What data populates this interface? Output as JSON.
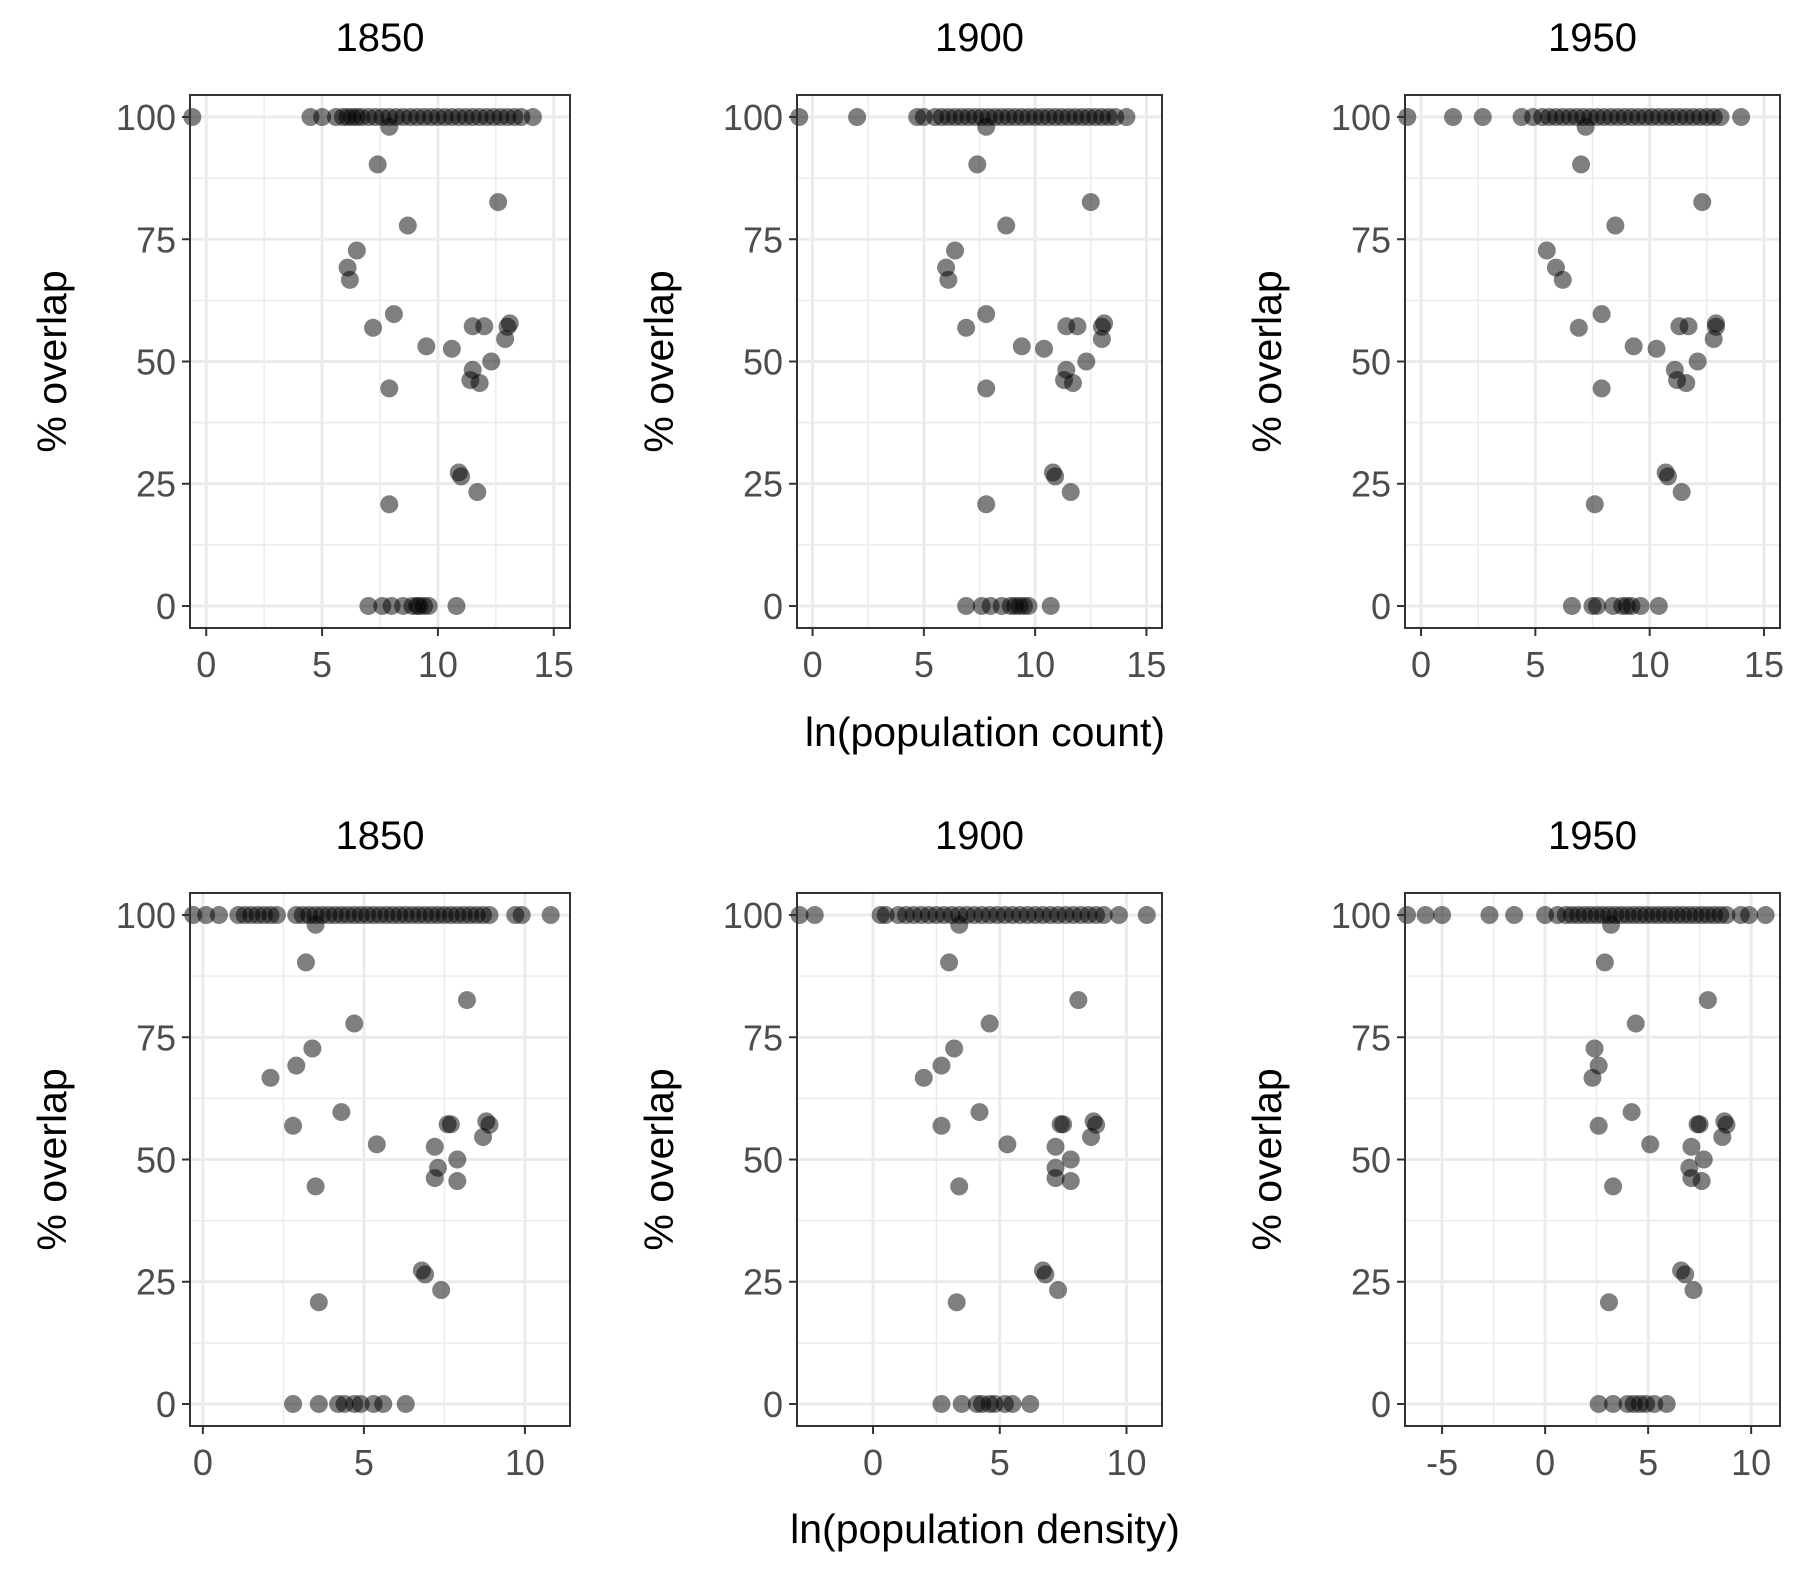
{
  "figure": {
    "xlabel_row1": "ln(population count)",
    "xlabel_row2": "ln(population density)",
    "ylabel": "% overlap"
  },
  "style": {
    "point_color": "#000000",
    "point_opacity": 0.5,
    "grid_color": "#ebebeb",
    "frame_color": "#333333",
    "tick_color": "#4d4d4d"
  },
  "chart_data": [
    {
      "type": "scatter",
      "title": "1850",
      "xlabel": "",
      "ylabel": "% overlap",
      "xlim": [
        -0.7,
        15.7
      ],
      "ylim": [
        -4.5,
        104.5
      ],
      "xticks": [
        0,
        5,
        10,
        15
      ],
      "yticks": [
        0,
        25,
        50,
        75,
        100
      ],
      "grid": true,
      "x": [
        -0.6,
        4.5,
        5.0,
        5.6,
        5.9,
        6.1,
        6.3,
        6.5,
        6.7,
        7.0,
        7.3,
        7.6,
        7.9,
        8.2,
        8.5,
        8.8,
        9.1,
        9.4,
        9.7,
        10.0,
        10.3,
        10.6,
        10.9,
        11.2,
        11.5,
        11.8,
        12.1,
        12.4,
        12.7,
        13.0,
        13.3,
        13.6,
        14.1,
        7.9,
        7.4,
        12.6,
        8.7,
        6.5,
        6.1,
        6.2,
        8.1,
        7.2,
        13.1,
        13.0,
        12.9,
        11.5,
        12.0,
        9.5,
        10.6,
        12.3,
        11.5,
        11.4,
        11.8,
        7.9,
        10.9,
        11.0,
        11.7,
        7.9,
        7.0,
        7.6,
        8.0,
        8.5,
        8.9,
        9.1,
        9.2,
        9.4,
        9.6,
        10.8
      ],
      "y": [
        100,
        100,
        100,
        100,
        100,
        100,
        100,
        100,
        100,
        100,
        100,
        100,
        100,
        100,
        100,
        100,
        100,
        100,
        100,
        100,
        100,
        100,
        100,
        100,
        100,
        100,
        100,
        100,
        100,
        100,
        100,
        100,
        100,
        98,
        90.3,
        82.6,
        77.8,
        72.7,
        69.2,
        66.7,
        59.7,
        56.9,
        57.8,
        57.1,
        54.6,
        57.2,
        57.2,
        53.1,
        52.6,
        50,
        48.3,
        46.2,
        45.6,
        44.5,
        27.3,
        26.5,
        23.3,
        20.8,
        0,
        0,
        0,
        0,
        0,
        0,
        0,
        0,
        0,
        0
      ]
    },
    {
      "type": "scatter",
      "title": "1900",
      "xlabel": "ln(population count)",
      "ylabel": "% overlap",
      "xlim": [
        -0.7,
        15.7
      ],
      "ylim": [
        -4.5,
        104.5
      ],
      "xticks": [
        0,
        5,
        10,
        15
      ],
      "yticks": [
        0,
        25,
        50,
        75,
        100
      ],
      "grid": true,
      "x": [
        -0.6,
        2.0,
        4.7,
        5.0,
        5.5,
        5.8,
        6.1,
        6.4,
        6.7,
        7.0,
        7.3,
        7.6,
        7.9,
        8.2,
        8.5,
        8.8,
        9.1,
        9.4,
        9.7,
        10.0,
        10.3,
        10.6,
        10.9,
        11.2,
        11.5,
        11.8,
        12.1,
        12.4,
        12.7,
        13.0,
        13.3,
        13.6,
        14.1,
        7.8,
        7.4,
        12.5,
        8.7,
        6.4,
        6.0,
        6.1,
        7.8,
        6.9,
        13.1,
        13.0,
        13.0,
        11.4,
        11.9,
        9.4,
        10.4,
        12.3,
        11.4,
        11.3,
        11.7,
        7.8,
        10.8,
        10.9,
        11.6,
        7.8,
        6.9,
        7.6,
        8.0,
        8.5,
        8.9,
        9.1,
        9.3,
        9.5,
        9.7,
        10.7
      ],
      "y": [
        100,
        100,
        100,
        100,
        100,
        100,
        100,
        100,
        100,
        100,
        100,
        100,
        100,
        100,
        100,
        100,
        100,
        100,
        100,
        100,
        100,
        100,
        100,
        100,
        100,
        100,
        100,
        100,
        100,
        100,
        100,
        100,
        100,
        98,
        90.3,
        82.6,
        77.8,
        72.7,
        69.2,
        66.7,
        59.7,
        56.9,
        57.8,
        57.1,
        54.6,
        57.2,
        57.2,
        53.1,
        52.6,
        50,
        48.3,
        46.2,
        45.6,
        44.5,
        27.3,
        26.5,
        23.3,
        20.8,
        0,
        0,
        0,
        0,
        0,
        0,
        0,
        0,
        0,
        0
      ]
    },
    {
      "type": "scatter",
      "title": "1950",
      "xlabel": "",
      "ylabel": "% overlap",
      "xlim": [
        -0.7,
        15.7
      ],
      "ylim": [
        -4.5,
        104.5
      ],
      "xticks": [
        0,
        5,
        10,
        15
      ],
      "yticks": [
        0,
        25,
        50,
        75,
        100
      ],
      "grid": true,
      "x": [
        -0.6,
        1.4,
        2.7,
        4.4,
        4.9,
        5.3,
        5.6,
        5.9,
        6.2,
        6.5,
        6.8,
        7.1,
        7.4,
        7.7,
        8.0,
        8.3,
        8.6,
        8.9,
        9.2,
        9.5,
        9.8,
        10.1,
        10.4,
        10.7,
        11.0,
        11.3,
        11.6,
        11.9,
        12.2,
        12.5,
        12.8,
        13.1,
        14.0,
        7.2,
        7.0,
        12.3,
        8.5,
        5.5,
        5.9,
        6.2,
        7.9,
        6.9,
        12.9,
        12.9,
        12.8,
        11.3,
        11.7,
        9.3,
        10.3,
        12.1,
        11.1,
        11.2,
        11.6,
        7.9,
        10.7,
        10.8,
        11.4,
        7.6,
        6.6,
        7.5,
        7.7,
        8.4,
        8.8,
        9.0,
        9.2,
        9.6,
        10.4
      ],
      "y": [
        100,
        100,
        100,
        100,
        100,
        100,
        100,
        100,
        100,
        100,
        100,
        100,
        100,
        100,
        100,
        100,
        100,
        100,
        100,
        100,
        100,
        100,
        100,
        100,
        100,
        100,
        100,
        100,
        100,
        100,
        100,
        100,
        100,
        98,
        90.3,
        82.6,
        77.8,
        72.7,
        69.2,
        66.7,
        59.7,
        56.9,
        57.8,
        57.1,
        54.6,
        57.2,
        57.2,
        53.1,
        52.6,
        50,
        48.3,
        46.2,
        45.6,
        44.5,
        27.3,
        26.5,
        23.3,
        20.8,
        0,
        0,
        0,
        0,
        0,
        0,
        0,
        0,
        0
      ]
    },
    {
      "type": "scatter",
      "title": "1850",
      "xlabel": "",
      "ylabel": "% overlap",
      "xlim": [
        -0.4,
        11.4
      ],
      "ylim": [
        -4.5,
        104.5
      ],
      "xticks": [
        0,
        5,
        10
      ],
      "yticks": [
        0,
        25,
        50,
        75,
        100
      ],
      "grid": true,
      "x": [
        -0.3,
        0.1,
        0.5,
        1.1,
        1.3,
        1.5,
        1.7,
        1.9,
        2.1,
        2.3,
        2.9,
        3.1,
        3.3,
        3.5,
        3.7,
        3.9,
        4.1,
        4.3,
        4.5,
        4.7,
        4.9,
        5.1,
        5.3,
        5.5,
        5.7,
        5.9,
        6.1,
        6.3,
        6.5,
        6.7,
        6.9,
        7.1,
        7.3,
        7.5,
        7.7,
        7.9,
        8.1,
        8.3,
        8.5,
        8.7,
        8.9,
        9.7,
        9.9,
        10.8,
        3.5,
        3.2,
        8.2,
        4.7,
        3.4,
        2.9,
        2.1,
        4.3,
        2.8,
        7.7,
        7.6,
        8.8,
        8.9,
        8.7,
        5.4,
        7.2,
        7.9,
        7.3,
        7.2,
        7.9,
        3.5,
        6.8,
        6.9,
        7.4,
        3.6,
        2.8,
        3.6,
        4.2,
        4.4,
        4.7,
        4.9,
        5.3,
        5.6,
        6.3
      ],
      "y": [
        100,
        100,
        100,
        100,
        100,
        100,
        100,
        100,
        100,
        100,
        100,
        100,
        100,
        100,
        100,
        100,
        100,
        100,
        100,
        100,
        100,
        100,
        100,
        100,
        100,
        100,
        100,
        100,
        100,
        100,
        100,
        100,
        100,
        100,
        100,
        100,
        100,
        100,
        100,
        100,
        100,
        100,
        100,
        100,
        98,
        90.3,
        82.6,
        77.8,
        72.7,
        69.2,
        66.7,
        59.7,
        56.9,
        57.2,
        57.2,
        57.8,
        57.1,
        54.6,
        53.1,
        52.6,
        50,
        48.3,
        46.2,
        45.6,
        44.5,
        27.3,
        26.5,
        23.3,
        20.8,
        0,
        0,
        0,
        0,
        0,
        0,
        0,
        0,
        0
      ]
    },
    {
      "type": "scatter",
      "title": "1900",
      "xlabel": "ln(population density)",
      "ylabel": "% overlap",
      "xlim": [
        -3.0,
        11.4
      ],
      "ylim": [
        -4.5,
        104.5
      ],
      "xticks": [
        0,
        5,
        10
      ],
      "yticks": [
        0,
        25,
        50,
        75,
        100
      ],
      "grid": true,
      "x": [
        -2.9,
        -2.3,
        0.3,
        0.5,
        1.0,
        1.3,
        1.6,
        1.9,
        2.2,
        2.5,
        2.8,
        3.1,
        3.4,
        3.7,
        4.0,
        4.3,
        4.6,
        4.9,
        5.2,
        5.5,
        5.8,
        6.1,
        6.4,
        6.7,
        7.0,
        7.3,
        7.6,
        7.9,
        8.2,
        8.5,
        8.8,
        9.1,
        9.7,
        10.8,
        3.4,
        3.0,
        8.1,
        4.6,
        3.2,
        2.7,
        2.0,
        4.2,
        2.7,
        7.5,
        7.4,
        8.7,
        8.8,
        8.6,
        5.3,
        7.2,
        7.8,
        7.2,
        7.2,
        7.8,
        3.4,
        6.7,
        6.8,
        7.3,
        3.3,
        2.7,
        3.5,
        4.1,
        4.3,
        4.6,
        4.8,
        5.2,
        5.5,
        6.2
      ],
      "y": [
        100,
        100,
        100,
        100,
        100,
        100,
        100,
        100,
        100,
        100,
        100,
        100,
        100,
        100,
        100,
        100,
        100,
        100,
        100,
        100,
        100,
        100,
        100,
        100,
        100,
        100,
        100,
        100,
        100,
        100,
        100,
        100,
        100,
        100,
        98,
        90.3,
        82.6,
        77.8,
        72.7,
        69.2,
        66.7,
        59.7,
        56.9,
        57.2,
        57.2,
        57.8,
        57.1,
        54.6,
        53.1,
        52.6,
        50,
        48.3,
        46.2,
        45.6,
        44.5,
        27.3,
        26.5,
        23.3,
        20.8,
        0,
        0,
        0,
        0,
        0,
        0,
        0,
        0,
        0
      ]
    },
    {
      "type": "scatter",
      "title": "1950",
      "xlabel": "",
      "ylabel": "% overlap",
      "xlim": [
        -6.8,
        11.4
      ],
      "ylim": [
        -4.5,
        104.5
      ],
      "xticks": [
        -5,
        0,
        5,
        10
      ],
      "yticks": [
        0,
        25,
        50,
        75,
        100
      ],
      "grid": true,
      "x": [
        -6.7,
        -5.8,
        -5.0,
        -2.7,
        -1.5,
        0.0,
        0.6,
        1.0,
        1.3,
        1.6,
        1.9,
        2.2,
        2.5,
        2.8,
        3.1,
        3.4,
        3.7,
        4.0,
        4.3,
        4.6,
        4.9,
        5.2,
        5.5,
        5.8,
        6.1,
        6.4,
        6.7,
        7.0,
        7.3,
        7.6,
        7.9,
        8.2,
        8.5,
        8.8,
        9.5,
        9.9,
        10.7,
        3.2,
        2.9,
        7.9,
        4.4,
        2.4,
        2.6,
        2.3,
        4.2,
        2.6,
        7.5,
        7.4,
        8.7,
        8.8,
        8.6,
        5.1,
        7.1,
        7.7,
        7.0,
        7.1,
        7.6,
        3.3,
        6.6,
        6.8,
        7.2,
        3.1,
        2.6,
        3.3,
        4.0,
        4.3,
        4.6,
        4.9,
        5.3,
        5.9
      ],
      "y": [
        100,
        100,
        100,
        100,
        100,
        100,
        100,
        100,
        100,
        100,
        100,
        100,
        100,
        100,
        100,
        100,
        100,
        100,
        100,
        100,
        100,
        100,
        100,
        100,
        100,
        100,
        100,
        100,
        100,
        100,
        100,
        100,
        100,
        100,
        100,
        100,
        100,
        98,
        90.3,
        82.6,
        77.8,
        72.7,
        69.2,
        66.7,
        59.7,
        56.9,
        57.2,
        57.2,
        57.8,
        57.1,
        54.6,
        53.1,
        52.6,
        50,
        48.3,
        46.2,
        45.6,
        44.5,
        27.3,
        26.5,
        23.3,
        20.8,
        0,
        0,
        0,
        0,
        0,
        0,
        0,
        0
      ]
    }
  ]
}
